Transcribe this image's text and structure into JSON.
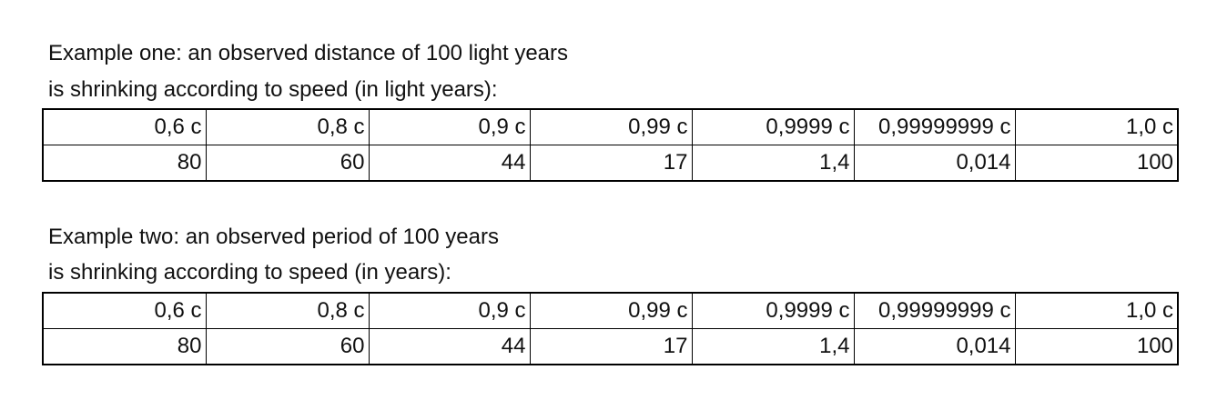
{
  "sections": [
    {
      "heading": [
        "Example one: an observed distance of 100 light years",
        "is shrinking according to speed (in light years):"
      ],
      "table": {
        "rows": [
          [
            "0,6 c",
            "0,8 c",
            "0,9 c",
            "0,99 c",
            "0,9999 c",
            "0,99999999 c",
            "1,0 c"
          ],
          [
            "80",
            "60",
            "44",
            "17",
            "1,4",
            "0,014",
            "100"
          ]
        ]
      }
    },
    {
      "heading": [
        "Example two: an observed period of 100 years",
        "is shrinking according to speed (in years):"
      ],
      "table": {
        "rows": [
          [
            "0,6 c",
            "0,8 c",
            "0,9 c",
            "0,99 c",
            "0,9999 c",
            "0,99999999 c",
            "1,0 c"
          ],
          [
            "80",
            "60",
            "44",
            "17",
            "1,4",
            "0,014",
            "100"
          ]
        ]
      }
    }
  ]
}
